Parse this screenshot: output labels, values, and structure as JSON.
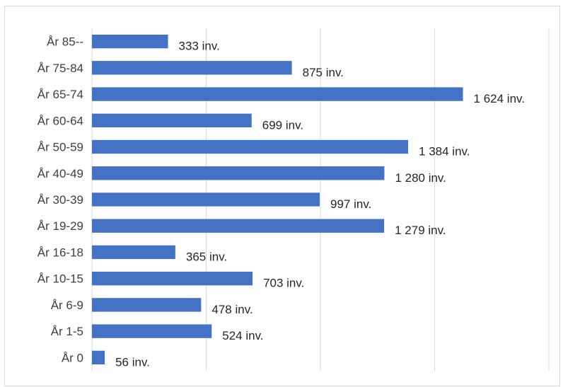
{
  "chart_data": {
    "type": "bar",
    "orientation": "horizontal",
    "categories": [
      "År 85--",
      "År 75-84",
      "År 65-74",
      "År 60-64",
      "År 50-59",
      "År 40-49",
      "År 30-39",
      "År 19-29",
      "År 16-18",
      "År 10-15",
      "År 6-9",
      "År 1-5",
      "År 0"
    ],
    "values": [
      333,
      875,
      1624,
      699,
      1384,
      1280,
      997,
      1279,
      365,
      703,
      478,
      524,
      56
    ],
    "data_labels": [
      "333 inv.",
      "875 inv.",
      "1 624 inv.",
      "699 inv.",
      "1 384 inv.",
      "1 280 inv.",
      "997 inv.",
      "1 279 inv.",
      "365 inv.",
      "703 inv.",
      "478 inv.",
      "524 inv.",
      "56 inv."
    ],
    "xlim": [
      0,
      2000
    ],
    "gridlines": "vertical",
    "bar_color": "#4472c4",
    "gridline_color": "#d9d9d9"
  }
}
